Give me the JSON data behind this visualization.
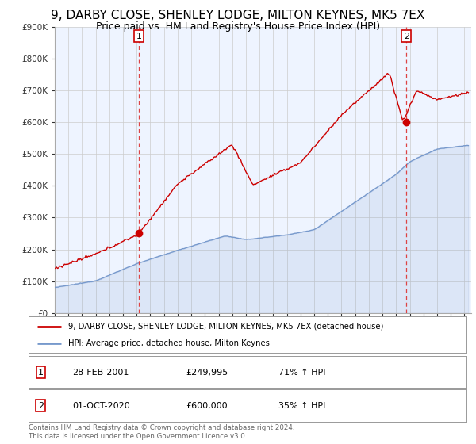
{
  "title": "9, DARBY CLOSE, SHENLEY LODGE, MILTON KEYNES, MK5 7EX",
  "subtitle": "Price paid vs. HM Land Registry's House Price Index (HPI)",
  "ylim": [
    0,
    900000
  ],
  "yticks": [
    0,
    100000,
    200000,
    300000,
    400000,
    500000,
    600000,
    700000,
    800000,
    900000
  ],
  "ytick_labels": [
    "£0",
    "£100K",
    "£200K",
    "£300K",
    "£400K",
    "£500K",
    "£600K",
    "£700K",
    "£800K",
    "£900K"
  ],
  "xlim_start": 1995.0,
  "xlim_end": 2025.5,
  "sale1_date": 2001.163,
  "sale1_price": 249995,
  "sale1_label": "1",
  "sale2_date": 2020.75,
  "sale2_price": 600000,
  "sale2_label": "2",
  "red_color": "#cc0000",
  "blue_color": "#7799cc",
  "fill_color": "#ddeeff",
  "dashed_color": "#dd4444",
  "legend_entry1": "9, DARBY CLOSE, SHENLEY LODGE, MILTON KEYNES, MK5 7EX (detached house)",
  "legend_entry2": "HPI: Average price, detached house, Milton Keynes",
  "table_row1": [
    "1",
    "28-FEB-2001",
    "£249,995",
    "71% ↑ HPI"
  ],
  "table_row2": [
    "2",
    "01-OCT-2020",
    "£600,000",
    "35% ↑ HPI"
  ],
  "footnote": "Contains HM Land Registry data © Crown copyright and database right 2024.\nThis data is licensed under the Open Government Licence v3.0.",
  "background_color": "#ffffff",
  "grid_color": "#cccccc",
  "title_fontsize": 11,
  "subtitle_fontsize": 9,
  "tick_fontsize": 7.5
}
